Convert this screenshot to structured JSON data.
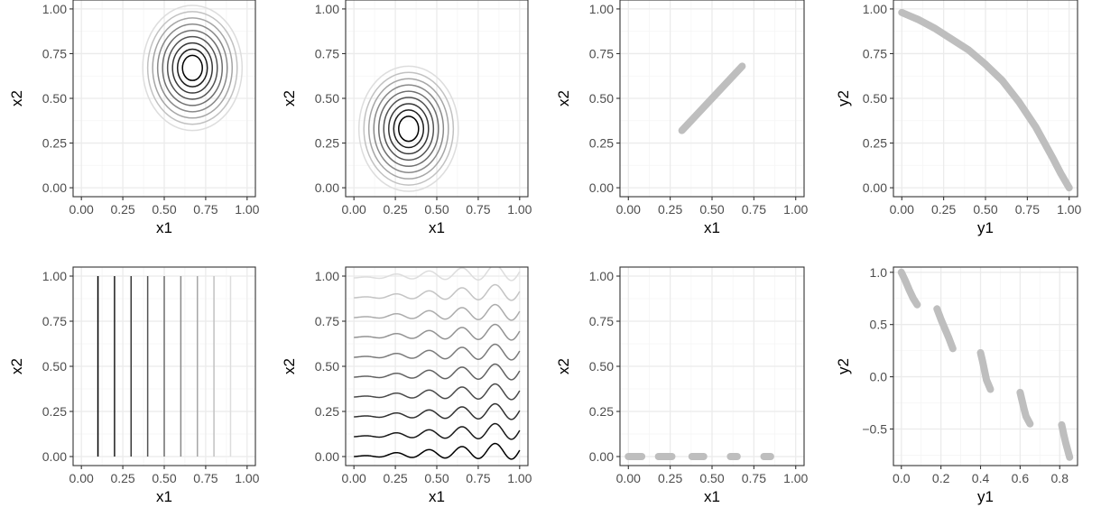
{
  "colors": {
    "frame": "#333333",
    "grid_major": "#ebebeb",
    "grid_minor": "#f5f5f5",
    "tick_text": "#4d4d4d",
    "front": "#bebebe",
    "contour_dark": "#000000",
    "contour_light": "#dddddd"
  },
  "chart_data": [
    {
      "id": "p1",
      "type": "contour",
      "xlabel": "x1",
      "ylabel": "x2",
      "xlim": [
        -0.05,
        1.05
      ],
      "ylim": [
        -0.05,
        1.05
      ],
      "xticks": [
        "0.00",
        "0.25",
        "0.50",
        "0.75",
        "1.00"
      ],
      "yticks": [
        "0.00",
        "0.25",
        "0.50",
        "0.75",
        "1.00"
      ],
      "contour": {
        "kind": "circles",
        "center": [
          0.67,
          0.67
        ],
        "rx": [
          0.06,
          0.09,
          0.12,
          0.15,
          0.18,
          0.21,
          0.24,
          0.27,
          0.3
        ],
        "ry": [
          0.07,
          0.105,
          0.14,
          0.175,
          0.21,
          0.245,
          0.28,
          0.315,
          0.35
        ]
      }
    },
    {
      "id": "p2",
      "type": "contour",
      "xlabel": "x1",
      "ylabel": "x2",
      "xlim": [
        -0.05,
        1.05
      ],
      "ylim": [
        -0.05,
        1.05
      ],
      "xticks": [
        "0.00",
        "0.25",
        "0.50",
        "0.75",
        "1.00"
      ],
      "yticks": [
        "0.00",
        "0.25",
        "0.50",
        "0.75",
        "1.00"
      ],
      "contour": {
        "kind": "circles",
        "center": [
          0.33,
          0.33
        ],
        "rx": [
          0.06,
          0.09,
          0.12,
          0.15,
          0.18,
          0.21,
          0.24,
          0.27,
          0.3
        ],
        "ry": [
          0.07,
          0.105,
          0.14,
          0.175,
          0.21,
          0.245,
          0.28,
          0.315,
          0.35
        ]
      }
    },
    {
      "id": "p3",
      "type": "line",
      "xlabel": "x1",
      "ylabel": "x2",
      "xlim": [
        -0.05,
        1.05
      ],
      "ylim": [
        -0.05,
        1.05
      ],
      "xticks": [
        "0.00",
        "0.25",
        "0.50",
        "0.75",
        "1.00"
      ],
      "yticks": [
        "0.00",
        "0.25",
        "0.50",
        "0.75",
        "1.00"
      ],
      "segments": [
        {
          "x": [
            0.32,
            0.68
          ],
          "y": [
            0.32,
            0.68
          ]
        }
      ]
    },
    {
      "id": "p4",
      "type": "line",
      "xlabel": "y1",
      "ylabel": "y2",
      "xlim": [
        -0.05,
        1.05
      ],
      "ylim": [
        -0.05,
        1.05
      ],
      "xticks": [
        "0.00",
        "0.25",
        "0.50",
        "0.75",
        "1.00"
      ],
      "yticks": [
        "0.00",
        "0.25",
        "0.50",
        "0.75",
        "1.00"
      ],
      "segments": [
        {
          "x": [
            0.0,
            0.1,
            0.2,
            0.3,
            0.4,
            0.5,
            0.6,
            0.7,
            0.8,
            0.9,
            0.95,
            1.0
          ],
          "y": [
            0.98,
            0.94,
            0.89,
            0.83,
            0.77,
            0.69,
            0.6,
            0.48,
            0.34,
            0.17,
            0.08,
            0.0
          ]
        }
      ]
    },
    {
      "id": "p5",
      "type": "contour",
      "xlabel": "x1",
      "ylabel": "x2",
      "xlim": [
        -0.05,
        1.05
      ],
      "ylim": [
        -0.05,
        1.05
      ],
      "xticks": [
        "0.00",
        "0.25",
        "0.50",
        "0.75",
        "1.00"
      ],
      "yticks": [
        "0.00",
        "0.25",
        "0.50",
        "0.75",
        "1.00"
      ],
      "contour": {
        "kind": "vertical",
        "levels": [
          0.1,
          0.2,
          0.3,
          0.4,
          0.5,
          0.6,
          0.7,
          0.8,
          0.9
        ],
        "y": [
          0.0,
          1.0
        ]
      }
    },
    {
      "id": "p6",
      "type": "contour",
      "xlabel": "x1",
      "ylabel": "x2",
      "xlim": [
        -0.05,
        1.05
      ],
      "ylim": [
        -0.05,
        1.05
      ],
      "xticks": [
        "0.00",
        "0.25",
        "0.50",
        "0.75",
        "1.00"
      ],
      "yticks": [
        "0.00",
        "0.25",
        "0.50",
        "0.75",
        "1.00"
      ],
      "contour": {
        "kind": "waves",
        "levels": [
          0.01,
          0.12,
          0.23,
          0.34,
          0.45,
          0.56,
          0.67,
          0.78,
          0.89,
          1.0
        ]
      }
    },
    {
      "id": "p7",
      "type": "line",
      "xlabel": "x1",
      "ylabel": "x2",
      "xlim": [
        -0.05,
        1.05
      ],
      "ylim": [
        -0.05,
        1.05
      ],
      "xticks": [
        "0.00",
        "0.25",
        "0.50",
        "0.75",
        "1.00"
      ],
      "yticks": [
        "0.00",
        "0.25",
        "0.50",
        "0.75",
        "1.00"
      ],
      "segments": [
        {
          "x": [
            0.0,
            0.08
          ],
          "y": [
            0,
            0
          ]
        },
        {
          "x": [
            0.18,
            0.26
          ],
          "y": [
            0,
            0
          ]
        },
        {
          "x": [
            0.38,
            0.45
          ],
          "y": [
            0,
            0
          ]
        },
        {
          "x": [
            0.61,
            0.65
          ],
          "y": [
            0,
            0
          ]
        },
        {
          "x": [
            0.81,
            0.85
          ],
          "y": [
            0,
            0
          ]
        }
      ]
    },
    {
      "id": "p8",
      "type": "line",
      "xlabel": "y1",
      "ylabel": "y2",
      "xlim": [
        -0.04,
        0.89
      ],
      "ylim": [
        -0.85,
        1.05
      ],
      "xticks": [
        "0.0",
        "0.2",
        "0.4",
        "0.6",
        "0.8"
      ],
      "yticks": [
        "−0.5",
        "0.0",
        "0.5",
        "1.0"
      ],
      "segments": [
        {
          "x": [
            0.0,
            0.02,
            0.04,
            0.06,
            0.08
          ],
          "y": [
            1.0,
            0.92,
            0.83,
            0.75,
            0.69
          ]
        },
        {
          "x": [
            0.18,
            0.2,
            0.22,
            0.24,
            0.26
          ],
          "y": [
            0.65,
            0.55,
            0.46,
            0.37,
            0.27
          ]
        },
        {
          "x": [
            0.4,
            0.41,
            0.42,
            0.43,
            0.45
          ],
          "y": [
            0.23,
            0.15,
            0.06,
            -0.03,
            -0.12
          ]
        },
        {
          "x": [
            0.6,
            0.61,
            0.62,
            0.63,
            0.65
          ],
          "y": [
            -0.15,
            -0.23,
            -0.31,
            -0.38,
            -0.45
          ]
        },
        {
          "x": [
            0.81,
            0.82,
            0.83,
            0.84,
            0.85
          ],
          "y": [
            -0.46,
            -0.55,
            -0.63,
            -0.7,
            -0.77
          ]
        }
      ]
    }
  ]
}
